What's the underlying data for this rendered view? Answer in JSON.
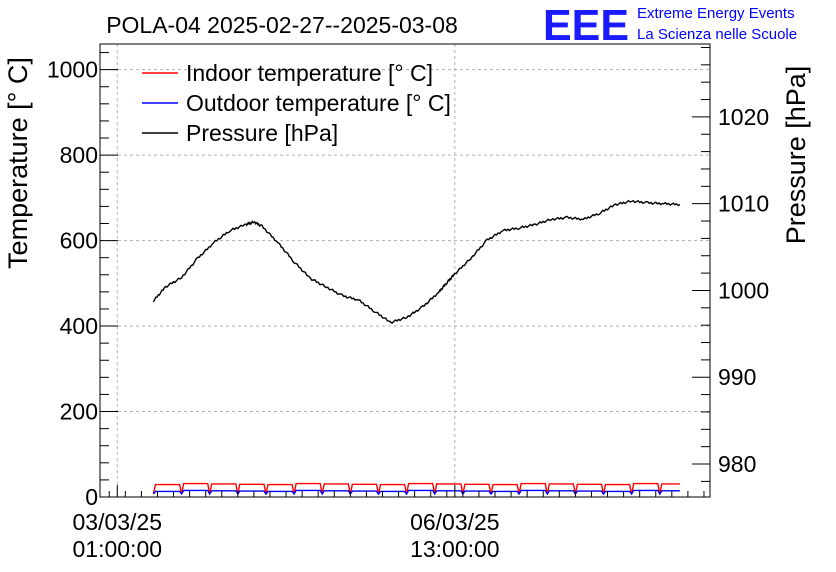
{
  "chart_data": {
    "type": "line",
    "title": "POLA-04 2025-02-27--2025-03-08",
    "ylabel": "Temperature [° C]",
    "y2label": "Pressure [hPa]",
    "ylim": [
      0,
      1060
    ],
    "y2lim": [
      976.2,
      1028.4
    ],
    "yticks": [
      "0",
      "200",
      "400",
      "600",
      "800",
      "1000"
    ],
    "y2ticks": [
      "980",
      "990",
      "1000",
      "1010",
      "1020"
    ],
    "xtick_labels": [
      {
        "date": "03/03/25",
        "time": "01:00:00",
        "t": 0
      },
      {
        "date": "06/03/25",
        "time": "13:00:00",
        "t": 84
      }
    ],
    "xlim": [
      -4.3,
      147.5
    ],
    "legend": {
      "placement": "top-left",
      "entries": [
        {
          "label": "Indoor temperature [° C]",
          "color": "#ff0000"
        },
        {
          "label": "Outdoor temperature [° C]",
          "color": "#0000ff"
        },
        {
          "label": "Pressure [hPa]",
          "color": "#000000"
        }
      ]
    },
    "series": [
      {
        "name": "Pressure [hPa]",
        "axis": "right",
        "color": "#000000",
        "x": [
          9,
          12,
          16,
          20,
          24,
          28,
          32,
          34,
          36,
          40,
          44,
          48,
          52,
          56,
          60,
          64,
          68,
          72,
          76,
          80,
          82,
          84,
          88,
          92,
          96,
          100,
          104,
          108,
          112,
          116,
          120,
          124,
          128,
          132,
          136,
          140
        ],
        "values": [
          998.8,
          1000.4,
          1001.5,
          1003.7,
          1005.5,
          1006.9,
          1007.6,
          1007.9,
          1007.4,
          1005.5,
          1003.3,
          1001.4,
          1000.4,
          999.4,
          998.9,
          997.6,
          996.3,
          996.9,
          998.1,
          999.8,
          1000.9,
          1001.9,
          1003.7,
          1005.8,
          1006.9,
          1007.2,
          1007.6,
          1008.2,
          1008.4,
          1008.2,
          1008.9,
          1009.9,
          1010.3,
          1010.1,
          1010.0,
          1009.9
        ]
      },
      {
        "name": "Indoor temperature [° C]",
        "axis": "left",
        "color": "#ff0000",
        "x": [
          9,
          140
        ],
        "values": [
          29,
          29
        ]
      },
      {
        "name": "Outdoor temperature [° C]",
        "axis": "left",
        "color": "#0000ff",
        "x": [
          9,
          140
        ],
        "values": [
          13,
          13
        ]
      }
    ]
  },
  "logo": {
    "mark": "EEE",
    "line1": "Extreme Energy Events",
    "line2": "La Scienza nelle Scuole",
    "color": "#0000ff"
  }
}
